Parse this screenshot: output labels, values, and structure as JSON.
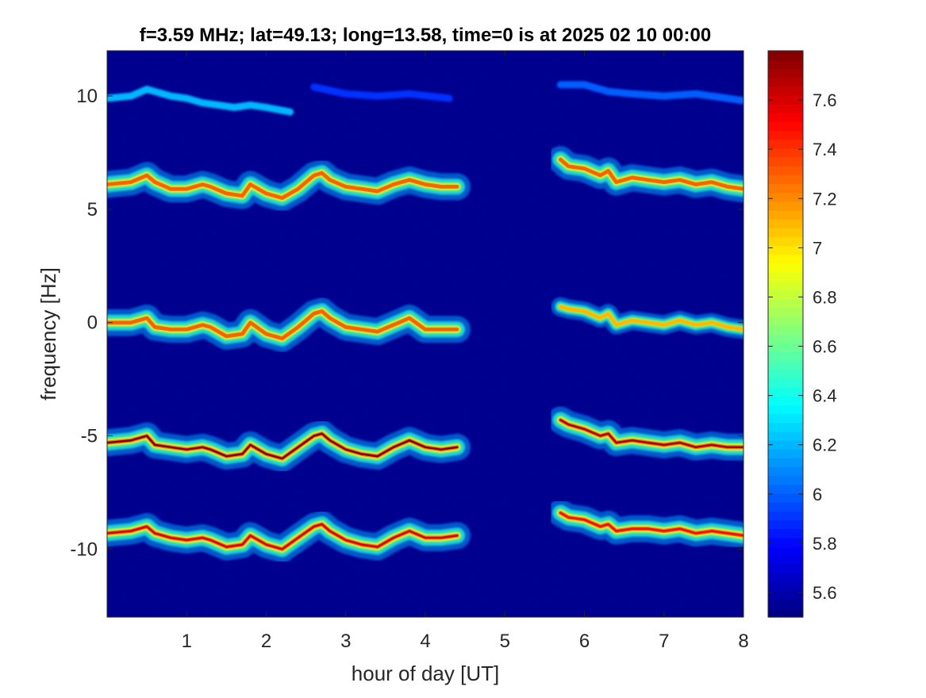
{
  "chart_data": {
    "type": "heatmap",
    "title": "f=3.59 MHz;  lat=49.13; long=13.58, time=0 is at 2025 02 10 00:00",
    "xlabel": "hour of day [UT]",
    "ylabel": "frequency [Hz]",
    "xlim": [
      0,
      8
    ],
    "ylim": [
      -13,
      12
    ],
    "xticks": [
      1,
      2,
      3,
      4,
      5,
      6,
      7,
      8
    ],
    "xtick_labels": [
      "1",
      "2",
      "3",
      "4",
      "5",
      "6",
      "7",
      "8"
    ],
    "yticks": [
      10,
      5,
      0,
      -5,
      -10
    ],
    "ytick_labels": [
      "10",
      "5",
      "0",
      "-5",
      "-10"
    ],
    "colorbar": {
      "colormap": "jet",
      "clim": [
        5.5,
        7.8
      ],
      "ticks": [
        5.6,
        5.8,
        6,
        6.2,
        6.4,
        6.6,
        6.8,
        7,
        7.2,
        7.4,
        7.6
      ],
      "tick_labels": [
        "5.6",
        "5.8",
        "6",
        "6.2",
        "6.4",
        "6.6",
        "6.8",
        "7",
        "7.2",
        "7.4",
        "7.6"
      ]
    },
    "background_value": 5.55,
    "data_gap_hours": [
      4.4,
      5.7
    ],
    "series": [
      {
        "segments": [
          {
            "x": [
              0,
              0.3,
              0.5,
              0.8,
              1.0,
              1.2,
              1.4,
              1.6,
              1.8,
              2.0,
              2.3
            ],
            "y": [
              9.9,
              10.0,
              10.3,
              10.0,
              9.9,
              9.7,
              9.6,
              9.5,
              9.6,
              9.5,
              9.3
            ],
            "peak": 6.2
          },
          {
            "x": [
              2.6,
              3.0,
              3.4,
              3.8,
              4.3
            ],
            "y": [
              10.4,
              10.1,
              10.0,
              10.1,
              9.9
            ],
            "peak": 5.9
          },
          {
            "x": [
              5.7,
              6.0,
              6.3,
              6.6,
              7.0,
              7.4,
              7.8,
              8.0
            ],
            "y": [
              10.5,
              10.5,
              10.2,
              10.1,
              10.0,
              10.1,
              9.9,
              9.8
            ],
            "peak": 6.0
          }
        ]
      },
      {
        "segments": [
          {
            "x": [
              0,
              0.3,
              0.5,
              0.6,
              0.8,
              1.0,
              1.2,
              1.3,
              1.5,
              1.7,
              1.8,
              2.0,
              2.2,
              2.4,
              2.6,
              2.7,
              2.8,
              3.0,
              3.2,
              3.4,
              3.6,
              3.8,
              4.0,
              4.2,
              4.4
            ],
            "y": [
              6.1,
              6.2,
              6.5,
              6.2,
              5.9,
              5.9,
              6.1,
              6.0,
              5.7,
              5.6,
              6.1,
              5.7,
              5.5,
              5.9,
              6.5,
              6.6,
              6.3,
              6.0,
              5.9,
              5.8,
              6.1,
              6.3,
              6.1,
              6.0,
              6.0
            ],
            "peak": 7.3
          },
          {
            "x": [
              5.7,
              5.8,
              6.0,
              6.2,
              6.3,
              6.4,
              6.6,
              6.8,
              7.0,
              7.2,
              7.4,
              7.6,
              7.8,
              8.0
            ],
            "y": [
              7.2,
              6.9,
              6.8,
              6.5,
              6.7,
              6.2,
              6.4,
              6.3,
              6.2,
              6.3,
              6.1,
              6.2,
              6.0,
              5.9
            ],
            "peak": 7.3
          }
        ]
      },
      {
        "segments": [
          {
            "x": [
              0,
              0.3,
              0.5,
              0.6,
              0.8,
              1.0,
              1.2,
              1.3,
              1.5,
              1.7,
              1.8,
              2.0,
              2.2,
              2.4,
              2.6,
              2.7,
              2.8,
              3.0,
              3.2,
              3.4,
              3.6,
              3.8,
              4.0,
              4.2,
              4.4
            ],
            "y": [
              0.0,
              0.0,
              0.2,
              -0.2,
              -0.3,
              -0.3,
              -0.1,
              -0.2,
              -0.6,
              -0.5,
              0.0,
              -0.5,
              -0.7,
              -0.2,
              0.4,
              0.5,
              0.2,
              -0.2,
              -0.3,
              -0.4,
              -0.1,
              0.2,
              -0.3,
              -0.3,
              -0.3
            ],
            "peak": 7.3
          },
          {
            "x": [
              5.7,
              5.8,
              6.0,
              6.2,
              6.3,
              6.4,
              6.6,
              6.8,
              7.0,
              7.2,
              7.4,
              7.6,
              7.8,
              8.0
            ],
            "y": [
              0.7,
              0.6,
              0.5,
              0.2,
              0.4,
              -0.1,
              0.1,
              0.0,
              -0.1,
              0.1,
              -0.1,
              0.0,
              -0.2,
              -0.3
            ],
            "peak": 7.1
          }
        ]
      },
      {
        "segments": [
          {
            "x": [
              0,
              0.3,
              0.5,
              0.6,
              0.8,
              1.0,
              1.2,
              1.3,
              1.5,
              1.7,
              1.8,
              2.0,
              2.2,
              2.4,
              2.6,
              2.7,
              2.8,
              3.0,
              3.2,
              3.4,
              3.6,
              3.8,
              4.0,
              4.2,
              4.4
            ],
            "y": [
              -5.3,
              -5.2,
              -5.0,
              -5.4,
              -5.5,
              -5.6,
              -5.5,
              -5.6,
              -5.9,
              -5.8,
              -5.4,
              -5.8,
              -6.0,
              -5.5,
              -5.0,
              -4.9,
              -5.2,
              -5.6,
              -5.8,
              -5.9,
              -5.5,
              -5.2,
              -5.5,
              -5.6,
              -5.5
            ],
            "peak": 7.8
          },
          {
            "x": [
              5.7,
              5.8,
              6.0,
              6.2,
              6.3,
              6.4,
              6.6,
              6.8,
              7.0,
              7.2,
              7.4,
              7.6,
              7.8,
              8.0
            ],
            "y": [
              -4.3,
              -4.5,
              -4.7,
              -5.0,
              -4.9,
              -5.3,
              -5.2,
              -5.3,
              -5.4,
              -5.3,
              -5.5,
              -5.4,
              -5.5,
              -5.5
            ],
            "peak": 7.7
          }
        ]
      },
      {
        "segments": [
          {
            "x": [
              0,
              0.3,
              0.5,
              0.6,
              0.8,
              1.0,
              1.2,
              1.3,
              1.5,
              1.7,
              1.8,
              2.0,
              2.2,
              2.4,
              2.6,
              2.7,
              2.8,
              3.0,
              3.2,
              3.4,
              3.6,
              3.8,
              4.0,
              4.2,
              4.4
            ],
            "y": [
              -9.3,
              -9.2,
              -9.0,
              -9.3,
              -9.5,
              -9.6,
              -9.5,
              -9.6,
              -9.9,
              -9.8,
              -9.4,
              -9.8,
              -10.0,
              -9.5,
              -9.0,
              -8.9,
              -9.2,
              -9.6,
              -9.8,
              -9.9,
              -9.5,
              -9.2,
              -9.5,
              -9.5,
              -9.4
            ],
            "peak": 7.6
          },
          {
            "x": [
              5.7,
              5.8,
              6.0,
              6.2,
              6.3,
              6.4,
              6.6,
              6.8,
              7.0,
              7.2,
              7.4,
              7.6,
              7.8,
              8.0
            ],
            "y": [
              -8.4,
              -8.6,
              -8.7,
              -9.0,
              -8.9,
              -9.2,
              -9.1,
              -9.1,
              -9.2,
              -9.1,
              -9.3,
              -9.2,
              -9.3,
              -9.4
            ],
            "peak": 7.5
          }
        ]
      }
    ]
  }
}
